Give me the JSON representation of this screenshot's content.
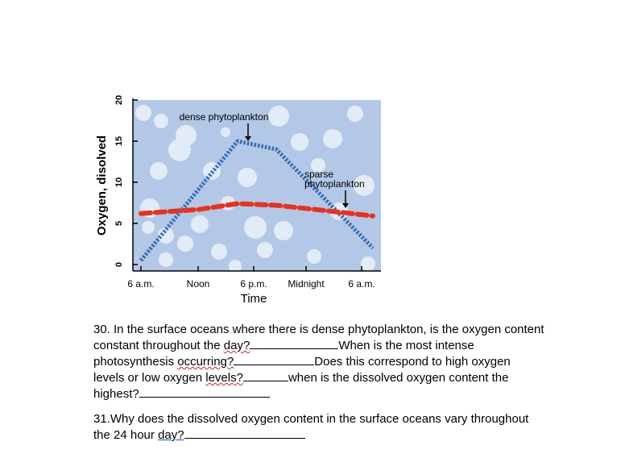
{
  "chart_data": {
    "type": "line",
    "xlabel": "Time",
    "ylabel": "Oxygen, disolved",
    "ylim": [
      0,
      20
    ],
    "yticks": [
      0,
      5,
      10,
      15,
      20
    ],
    "x_tick_labels": [
      "6 a.m.",
      "Noon",
      "6 p.m.",
      "Midnight",
      "6 a.m."
    ],
    "series": [
      {
        "name": "dense phytoplankton",
        "color": "#2f6db5",
        "style": "dashed",
        "points": [
          [
            0,
            0.5
          ],
          [
            10,
            15
          ],
          [
            14,
            14
          ],
          [
            24,
            2
          ]
        ]
      },
      {
        "name": "sparse phytoplankton",
        "color": "#e8321e",
        "style": "dashed",
        "points": [
          [
            0,
            6.2
          ],
          [
            6,
            6.7
          ],
          [
            10,
            7.4
          ],
          [
            14,
            7.2
          ],
          [
            18,
            6.7
          ],
          [
            21,
            6.3
          ],
          [
            24,
            5.9
          ]
        ]
      }
    ],
    "annotations": [
      {
        "text": "dense phytoplankton",
        "at_x": 11,
        "at_y": 15
      },
      {
        "text": "sparse phytoplankton",
        "at_x": 21,
        "at_y": 6.5
      }
    ],
    "colors": {
      "background": "#b3c8e6",
      "bubble": "#e3ebf6"
    }
  },
  "questions": {
    "q30": {
      "p1": "30. In the surface oceans where there is dense phytoplankton, is the oxygen content constant throughout the ",
      "w1": "day?",
      "p2": "When is the most intense photosynthesis ",
      "w2": "occurring?",
      "p3": "Does this correspond to high oxygen levels or low oxygen ",
      "w3": "levels?",
      "p4": "when is the dissolved oxygen content the highest?"
    },
    "q31": {
      "p1": "31.Why does the dissolved oxygen content in the surface oceans vary throughout the 24 hour ",
      "w1": "day?"
    }
  }
}
